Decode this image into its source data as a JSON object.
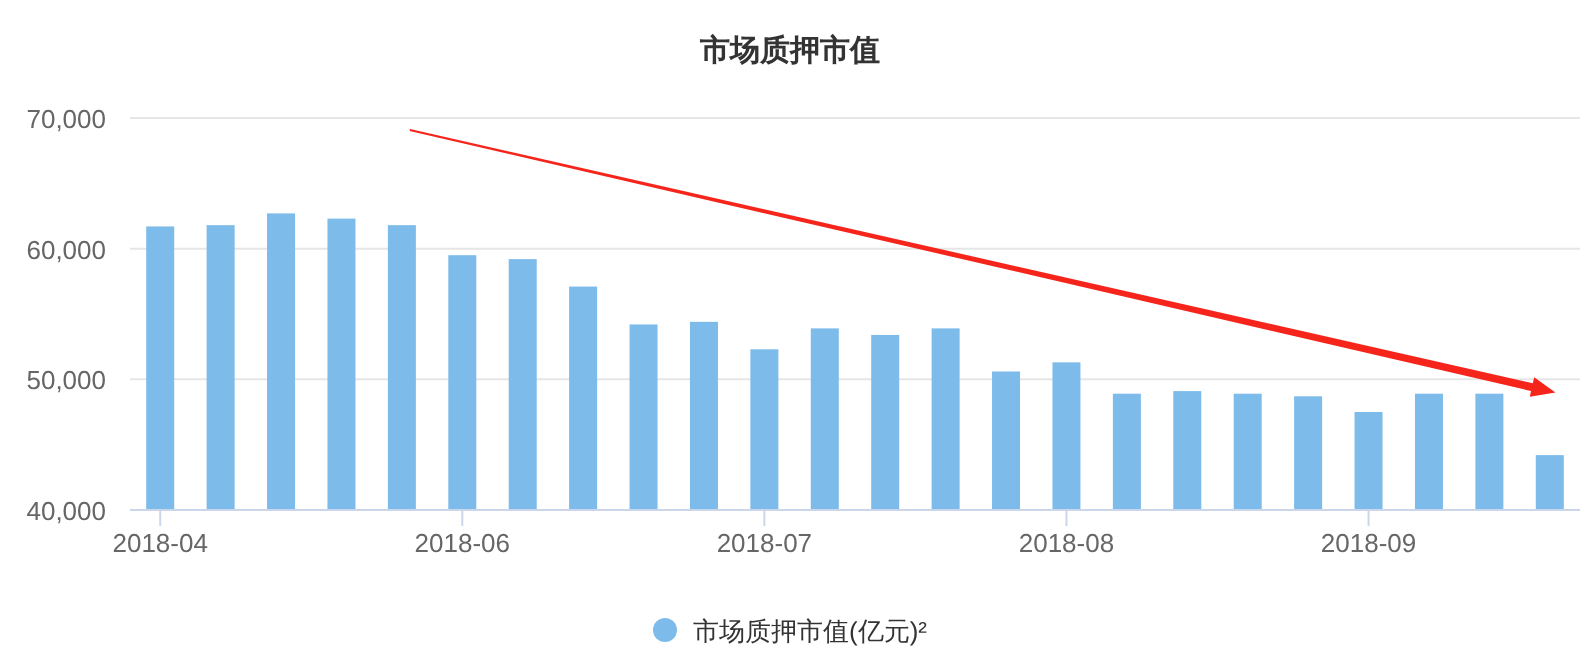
{
  "chart_data": {
    "type": "bar",
    "title": "市场质押市值",
    "categories": [
      "2018-04",
      null,
      null,
      null,
      null,
      "2018-06",
      null,
      null,
      null,
      null,
      "2018-07",
      null,
      null,
      null,
      null,
      "2018-08",
      null,
      null,
      null,
      null,
      "2018-09",
      null,
      null,
      null
    ],
    "series": [
      {
        "name": "市场质押市值(亿元)²",
        "color": "#7dbbea",
        "values": [
          61700,
          61800,
          62700,
          62300,
          61800,
          59500,
          59200,
          57100,
          54200,
          54400,
          52300,
          53900,
          53400,
          53900,
          50600,
          51300,
          48900,
          49100,
          48900,
          48700,
          47500,
          48900,
          48900,
          44200
        ]
      }
    ],
    "ylim": [
      40000,
      70000
    ],
    "yticks": [
      {
        "value": 40000,
        "label": "40,000"
      },
      {
        "value": 50000,
        "label": "50,000"
      },
      {
        "value": 60000,
        "label": "60,000"
      },
      {
        "value": 70000,
        "label": "70,000"
      }
    ],
    "grid": "y",
    "legend": "bottom"
  }
}
